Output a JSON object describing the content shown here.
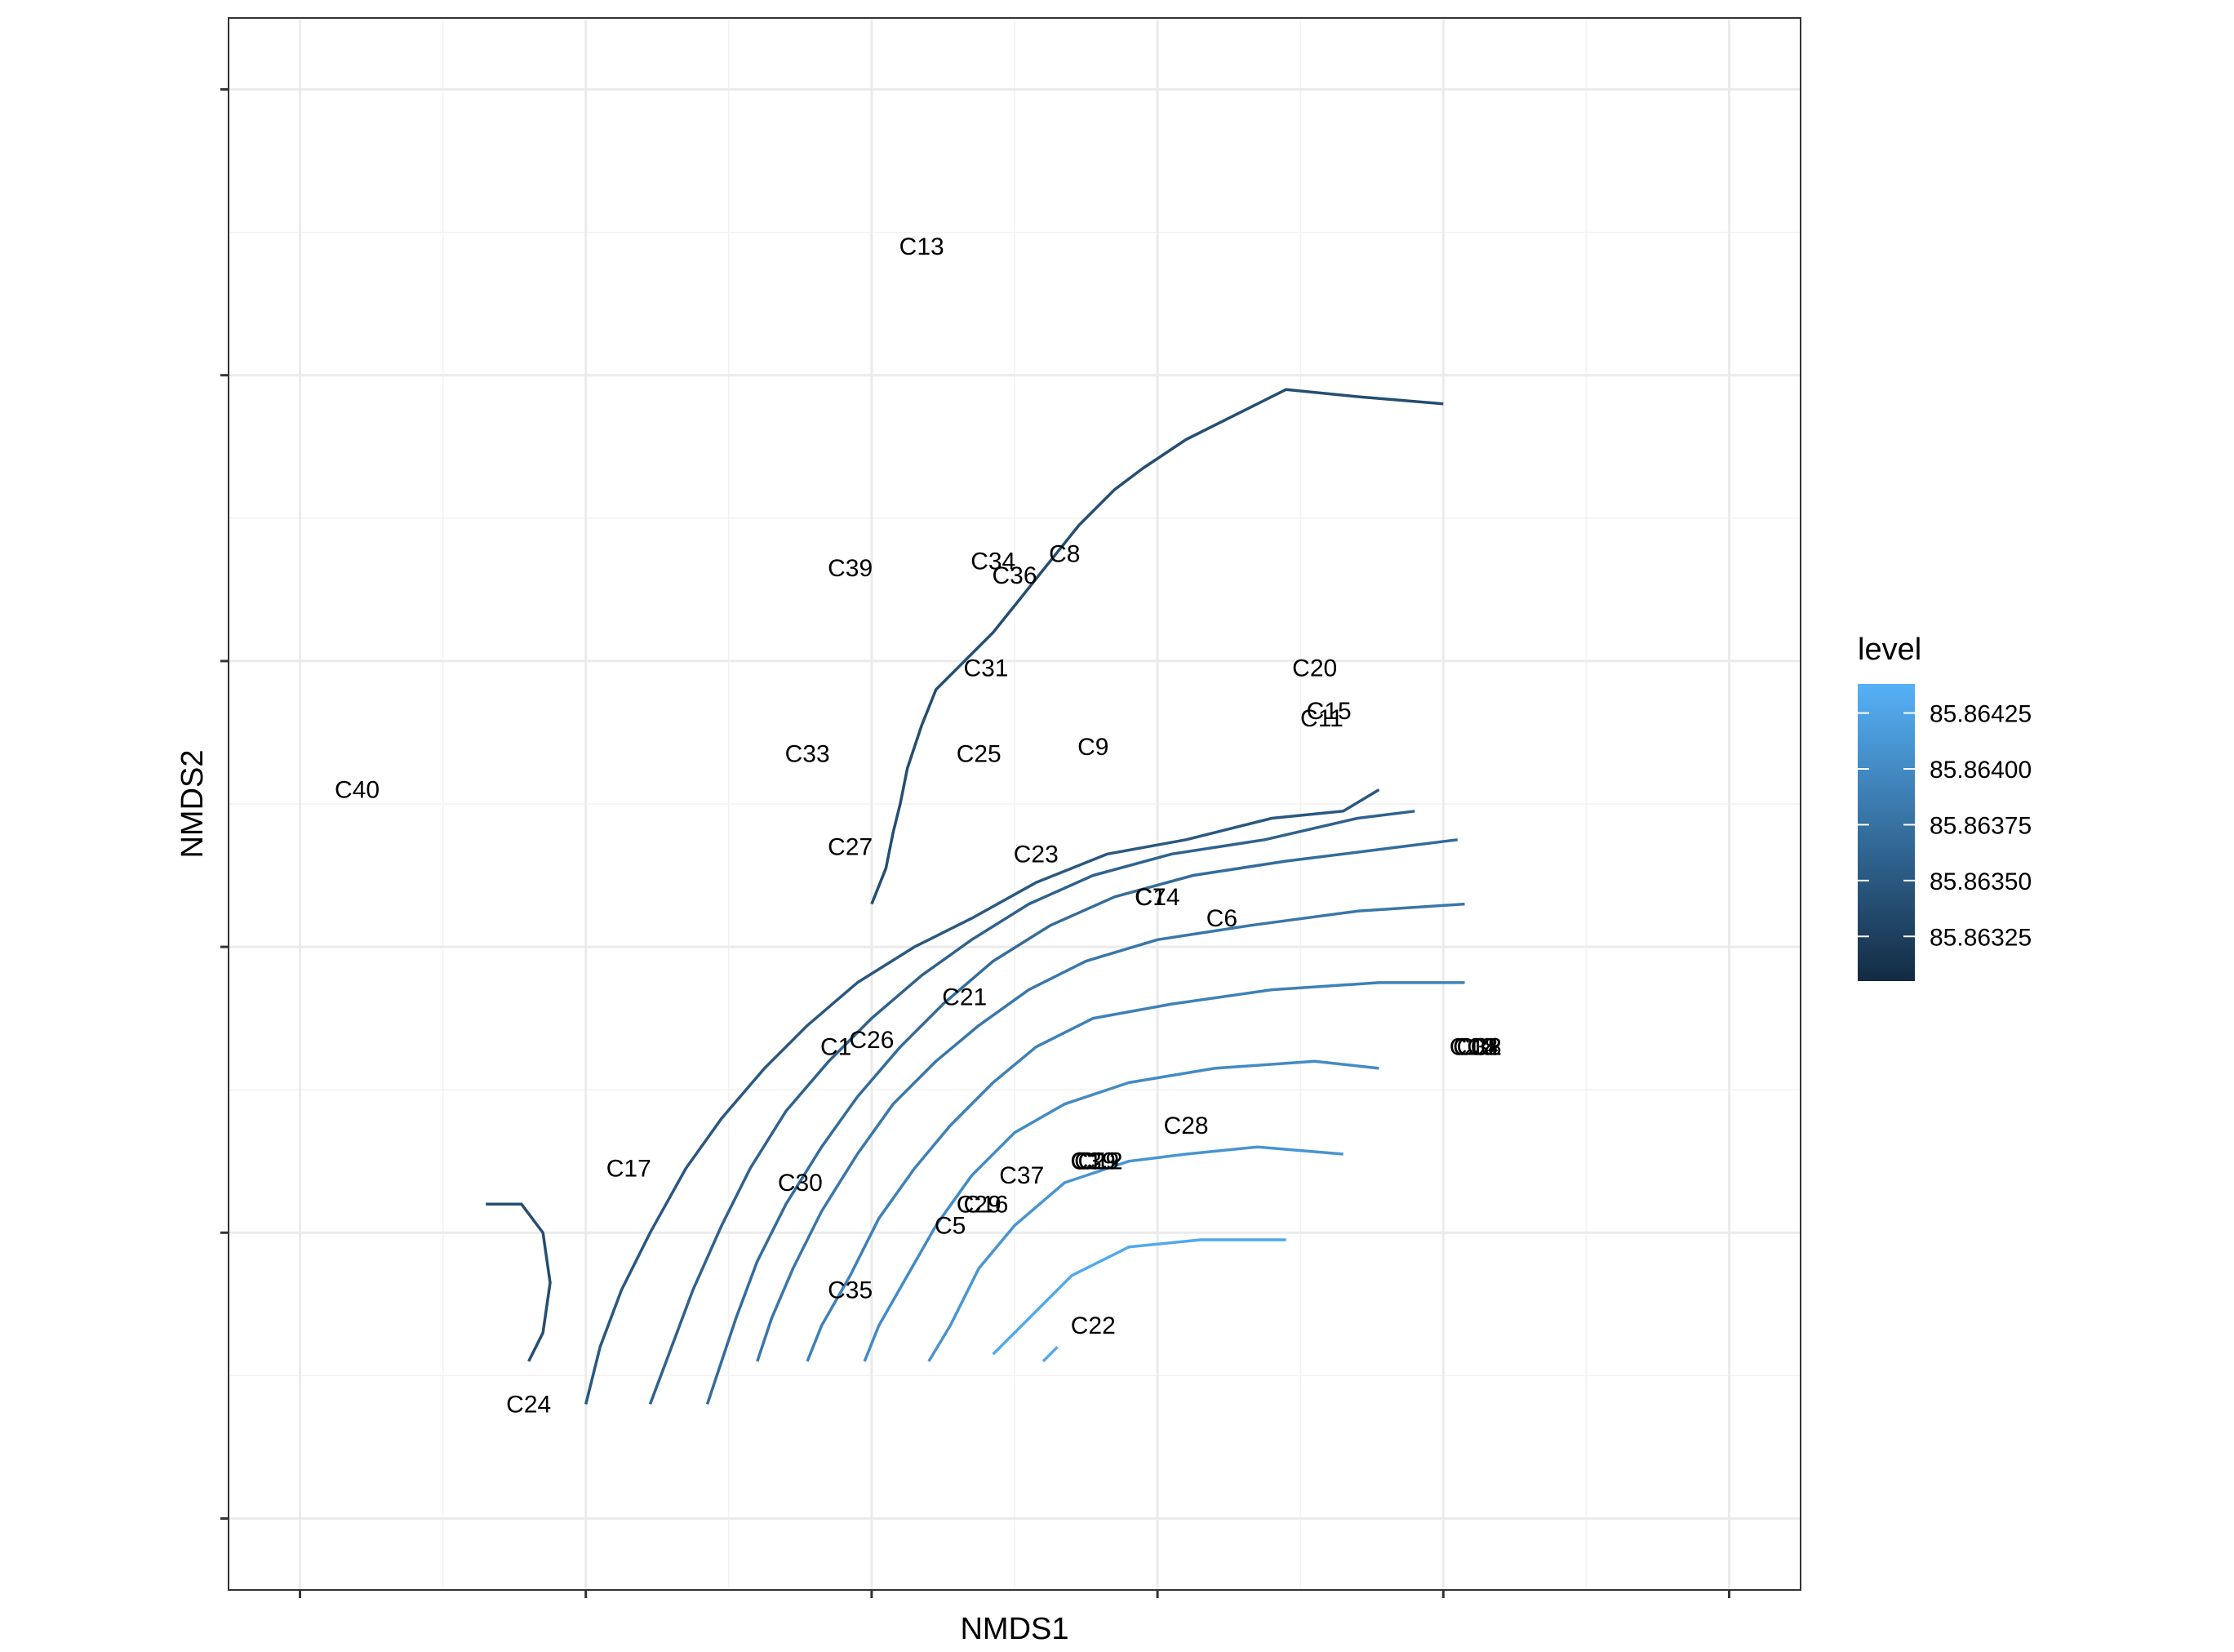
{
  "chart_data": {
    "type": "contour",
    "xlabel": "NMDS1",
    "ylabel": "NMDS2",
    "x_tick_count": 6,
    "y_tick_count": 6,
    "x_ticks": [
      -1.0,
      -0.6,
      -0.2,
      0.2,
      0.6,
      1.0
    ],
    "y_ticks": [
      -1.0,
      -0.6,
      -0.2,
      0.2,
      0.6,
      1.0
    ],
    "xlim": [
      -1.1,
      1.1
    ],
    "ylim": [
      -1.1,
      1.1
    ],
    "grid": true,
    "legend": {
      "title": "level",
      "position": "right",
      "low_color": "#132B43",
      "high_color": "#56B1F7",
      "range": [
        85.86305,
        85.86438
      ],
      "ticks": [
        {
          "value": 85.86325,
          "label": "85.86325"
        },
        {
          "value": 85.8635,
          "label": "85.86350"
        },
        {
          "value": 85.86375,
          "label": "85.86375"
        },
        {
          "value": 85.864,
          "label": "85.86400"
        },
        {
          "value": 85.86425,
          "label": "85.86425"
        }
      ]
    },
    "points": [
      {
        "label": "C13",
        "x": -0.13,
        "y": 0.78
      },
      {
        "label": "C39",
        "x": -0.23,
        "y": 0.33
      },
      {
        "label": "C34",
        "x": -0.03,
        "y": 0.34
      },
      {
        "label": "C36",
        "x": 0.0,
        "y": 0.32
      },
      {
        "label": "C8",
        "x": 0.07,
        "y": 0.35
      },
      {
        "label": "C31",
        "x": -0.04,
        "y": 0.19
      },
      {
        "label": "C20",
        "x": 0.42,
        "y": 0.19
      },
      {
        "label": "C15",
        "x": 0.44,
        "y": 0.13
      },
      {
        "label": "C11",
        "x": 0.43,
        "y": 0.12
      },
      {
        "label": "C9",
        "x": 0.11,
        "y": 0.08
      },
      {
        "label": "C40",
        "x": -0.92,
        "y": 0.02
      },
      {
        "label": "C33",
        "x": -0.29,
        "y": 0.07
      },
      {
        "label": "C25",
        "x": -0.05,
        "y": 0.07
      },
      {
        "label": "C27",
        "x": -0.23,
        "y": -0.06
      },
      {
        "label": "C23",
        "x": 0.03,
        "y": -0.07
      },
      {
        "label": "C7",
        "x": 0.19,
        "y": -0.13
      },
      {
        "label": "C14",
        "x": 0.2,
        "y": -0.13
      },
      {
        "label": "C6",
        "x": 0.29,
        "y": -0.16
      },
      {
        "label": "C21",
        "x": -0.07,
        "y": -0.27
      },
      {
        "label": "C1",
        "x": -0.25,
        "y": -0.34
      },
      {
        "label": "C26",
        "x": -0.2,
        "y": -0.33
      },
      {
        "label": "C10",
        "x": 0.64,
        "y": -0.34
      },
      {
        "label": "C18",
        "x": 0.645,
        "y": -0.34
      },
      {
        "label": "C38",
        "x": 0.65,
        "y": -0.34
      },
      {
        "label": "C4",
        "x": 0.655,
        "y": -0.34
      },
      {
        "label": "C2",
        "x": 0.66,
        "y": -0.34
      },
      {
        "label": "C17",
        "x": -0.54,
        "y": -0.51
      },
      {
        "label": "C28",
        "x": 0.24,
        "y": -0.45
      },
      {
        "label": "C3",
        "x": 0.1,
        "y": -0.5
      },
      {
        "label": "C19",
        "x": 0.11,
        "y": -0.5
      },
      {
        "label": "C12",
        "x": 0.12,
        "y": -0.5
      },
      {
        "label": "C29",
        "x": 0.115,
        "y": -0.5
      },
      {
        "label": "C30",
        "x": -0.3,
        "y": -0.53
      },
      {
        "label": "C37",
        "x": 0.01,
        "y": -0.52
      },
      {
        "label": "C16",
        "x": -0.04,
        "y": -0.56
      },
      {
        "label": "C29",
        "x": -0.05,
        "y": -0.56
      },
      {
        "label": "C5",
        "x": -0.09,
        "y": -0.59
      },
      {
        "label": "C35",
        "x": -0.23,
        "y": -0.68
      },
      {
        "label": "C22",
        "x": 0.11,
        "y": -0.73
      },
      {
        "label": "C24",
        "x": -0.68,
        "y": -0.84
      }
    ],
    "contours": [
      {
        "level": 85.8643,
        "path": [
          [
            0.04,
            -0.78
          ],
          [
            0.06,
            -0.76
          ]
        ]
      },
      {
        "level": 85.8643,
        "path": [
          [
            -0.03,
            -0.77
          ],
          [
            0.01,
            -0.73
          ],
          [
            0.08,
            -0.66
          ],
          [
            0.16,
            -0.62
          ],
          [
            0.26,
            -0.61
          ],
          [
            0.38,
            -0.61
          ]
        ]
      },
      {
        "level": 85.8641,
        "path": [
          [
            -0.12,
            -0.78
          ],
          [
            -0.09,
            -0.73
          ],
          [
            -0.05,
            -0.65
          ],
          [
            0.0,
            -0.59
          ],
          [
            0.07,
            -0.53
          ],
          [
            0.16,
            -0.5
          ],
          [
            0.24,
            -0.49
          ],
          [
            0.34,
            -0.48
          ],
          [
            0.46,
            -0.49
          ]
        ]
      },
      {
        "level": 85.864,
        "path": [
          [
            -0.21,
            -0.78
          ],
          [
            -0.19,
            -0.73
          ],
          [
            -0.15,
            -0.66
          ],
          [
            -0.11,
            -0.59
          ],
          [
            -0.06,
            -0.52
          ],
          [
            0.0,
            -0.46
          ],
          [
            0.07,
            -0.42
          ],
          [
            0.16,
            -0.39
          ],
          [
            0.28,
            -0.37
          ],
          [
            0.42,
            -0.36
          ],
          [
            0.51,
            -0.37
          ]
        ]
      },
      {
        "level": 85.8639,
        "path": [
          [
            -0.29,
            -0.78
          ],
          [
            -0.27,
            -0.73
          ],
          [
            -0.23,
            -0.66
          ],
          [
            -0.19,
            -0.58
          ],
          [
            -0.14,
            -0.51
          ],
          [
            -0.09,
            -0.45
          ],
          [
            -0.03,
            -0.39
          ],
          [
            0.03,
            -0.34
          ],
          [
            0.11,
            -0.3
          ],
          [
            0.22,
            -0.28
          ],
          [
            0.36,
            -0.26
          ],
          [
            0.51,
            -0.25
          ],
          [
            0.63,
            -0.25
          ]
        ]
      },
      {
        "level": 85.8638,
        "path": [
          [
            -0.36,
            -0.78
          ],
          [
            -0.34,
            -0.72
          ],
          [
            -0.31,
            -0.65
          ],
          [
            -0.27,
            -0.57
          ],
          [
            -0.22,
            -0.49
          ],
          [
            -0.17,
            -0.42
          ],
          [
            -0.11,
            -0.36
          ],
          [
            -0.05,
            -0.31
          ],
          [
            0.02,
            -0.26
          ],
          [
            0.1,
            -0.22
          ],
          [
            0.2,
            -0.19
          ],
          [
            0.33,
            -0.17
          ],
          [
            0.48,
            -0.15
          ],
          [
            0.63,
            -0.14
          ]
        ]
      },
      {
        "level": 85.8637,
        "path": [
          [
            -0.42,
            -0.81
          ],
          [
            -0.43,
            -0.84
          ]
        ]
      },
      {
        "level": 85.8637,
        "path": [
          [
            -0.42,
            -0.81
          ],
          [
            -0.39,
            -0.72
          ],
          [
            -0.36,
            -0.64
          ],
          [
            -0.32,
            -0.56
          ],
          [
            -0.27,
            -0.48
          ],
          [
            -0.22,
            -0.41
          ],
          [
            -0.16,
            -0.34
          ],
          [
            -0.1,
            -0.28
          ],
          [
            -0.03,
            -0.22
          ],
          [
            0.05,
            -0.17
          ],
          [
            0.14,
            -0.13
          ],
          [
            0.25,
            -0.1
          ],
          [
            0.38,
            -0.08
          ],
          [
            0.54,
            -0.06
          ],
          [
            0.62,
            -0.05
          ]
        ]
      },
      {
        "level": 85.8636,
        "path": [
          [
            -0.51,
            -0.84
          ],
          [
            -0.48,
            -0.76
          ],
          [
            -0.45,
            -0.68
          ],
          [
            -0.41,
            -0.59
          ],
          [
            -0.37,
            -0.51
          ],
          [
            -0.32,
            -0.43
          ],
          [
            -0.26,
            -0.36
          ],
          [
            -0.2,
            -0.3
          ],
          [
            -0.13,
            -0.24
          ],
          [
            -0.06,
            -0.19
          ],
          [
            0.02,
            -0.14
          ],
          [
            0.11,
            -0.1
          ],
          [
            0.22,
            -0.07
          ],
          [
            0.35,
            -0.05
          ],
          [
            0.48,
            -0.02
          ],
          [
            0.56,
            -0.01
          ]
        ]
      },
      {
        "level": 85.8635,
        "path": [
          [
            -0.6,
            -0.84
          ],
          [
            -0.58,
            -0.76
          ],
          [
            -0.55,
            -0.68
          ],
          [
            -0.51,
            -0.6
          ],
          [
            -0.46,
            -0.51
          ],
          [
            -0.41,
            -0.44
          ],
          [
            -0.35,
            -0.37
          ],
          [
            -0.29,
            -0.31
          ],
          [
            -0.22,
            -0.25
          ],
          [
            -0.14,
            -0.2
          ],
          [
            -0.06,
            -0.16
          ],
          [
            0.03,
            -0.11
          ],
          [
            0.13,
            -0.07
          ],
          [
            0.24,
            -0.05
          ],
          [
            0.36,
            -0.02
          ],
          [
            0.46,
            -0.01
          ],
          [
            0.51,
            0.02
          ]
        ]
      },
      {
        "level": 85.8634,
        "path": [
          [
            -0.74,
            -0.56
          ],
          [
            -0.69,
            -0.56
          ],
          [
            -0.66,
            -0.6
          ],
          [
            -0.65,
            -0.67
          ],
          [
            -0.66,
            -0.74
          ],
          [
            -0.68,
            -0.78
          ]
        ]
      },
      {
        "level": 85.8634,
        "path": [
          [
            -0.2,
            -0.14
          ],
          [
            -0.18,
            -0.09
          ],
          [
            -0.17,
            -0.04
          ],
          [
            -0.16,
            0.0
          ],
          [
            -0.15,
            0.05
          ],
          [
            -0.13,
            0.11
          ],
          [
            -0.11,
            0.16
          ],
          [
            -0.07,
            0.2
          ],
          [
            -0.03,
            0.24
          ],
          [
            0.01,
            0.29
          ],
          [
            0.05,
            0.34
          ],
          [
            0.09,
            0.39
          ],
          [
            0.14,
            0.44
          ],
          [
            0.18,
            0.47
          ],
          [
            0.24,
            0.51
          ],
          [
            0.38,
            0.58
          ],
          [
            0.48,
            0.57
          ],
          [
            0.6,
            0.56
          ]
        ]
      }
    ]
  }
}
